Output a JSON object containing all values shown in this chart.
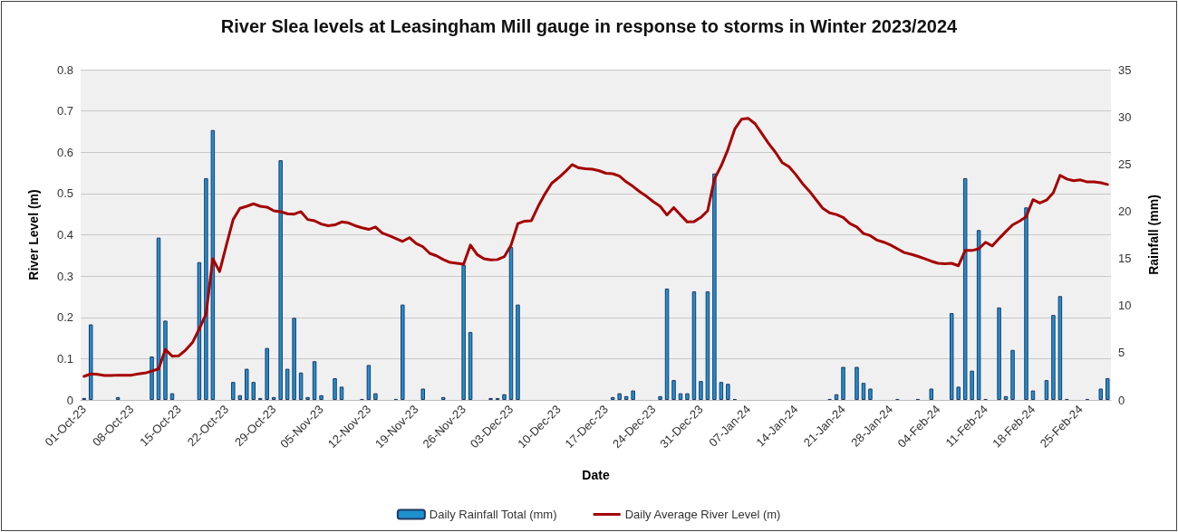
{
  "chart_data": {
    "type": "bar",
    "title": "River Slea levels at Leasingham Mill gauge in response to storms in Winter 2023/2024",
    "xlabel": "Date",
    "ylabel": "River Level (m)",
    "y2label": "Rainfall (mm)",
    "categories": [
      "01-Oct-23",
      null,
      null,
      null,
      null,
      null,
      null,
      "08-Oct-23",
      null,
      null,
      null,
      null,
      null,
      null,
      "15-Oct-23",
      null,
      null,
      null,
      null,
      null,
      null,
      "22-Oct-23",
      null,
      null,
      null,
      null,
      null,
      null,
      "29-Oct-23",
      null,
      null,
      null,
      null,
      null,
      null,
      "05-Nov-23",
      null,
      null,
      null,
      null,
      null,
      null,
      "12-Nov-23",
      null,
      null,
      null,
      null,
      null,
      null,
      "19-Nov-23",
      null,
      null,
      null,
      null,
      null,
      null,
      "26-Nov-23",
      null,
      null,
      null,
      null,
      null,
      null,
      "03-Dec-23",
      null,
      null,
      null,
      null,
      null,
      null,
      "10-Dec-23",
      null,
      null,
      null,
      null,
      null,
      null,
      "17-Dec-23",
      null,
      null,
      null,
      null,
      null,
      null,
      "24-Dec-23",
      null,
      null,
      null,
      null,
      null,
      null,
      "31-Dec-23",
      null,
      null,
      null,
      null,
      null,
      null,
      "07-Jan-24",
      null,
      null,
      null,
      null,
      null,
      null,
      "14-Jan-24",
      null,
      null,
      null,
      null,
      null,
      null,
      "21-Jan-24",
      null,
      null,
      null,
      null,
      null,
      null,
      "28-Jan-24",
      null,
      null,
      null,
      null,
      null,
      null,
      "04-Feb-24",
      null,
      null,
      null,
      null,
      null,
      null,
      "11-Feb-24",
      null,
      null,
      null,
      null,
      null,
      null,
      "18-Feb-24",
      null,
      null,
      null,
      null,
      null,
      null,
      "25-Feb-24",
      null,
      null,
      null,
      null
    ],
    "series": [
      {
        "name": "Daily Rainfall Total (mm)",
        "axis": "y2",
        "color": "#1e90d0",
        "values": [
          0.2,
          8.0,
          0,
          0,
          0,
          0.3,
          0,
          0,
          0,
          0,
          4.6,
          17.2,
          8.4,
          0.7,
          0,
          0,
          0,
          14.6,
          23.5,
          28.6,
          0,
          0,
          1.9,
          0.5,
          3.3,
          1.9,
          0.2,
          5.5,
          0.3,
          25.4,
          3.3,
          8.7,
          2.9,
          0.3,
          4.1,
          0.5,
          0,
          2.3,
          1.4,
          0,
          0,
          0.1,
          3.7,
          0.7,
          0,
          0,
          0.1,
          10.1,
          0,
          0,
          1.2,
          0,
          0,
          0.3,
          0,
          0,
          14.3,
          7.2,
          0,
          0,
          0.2,
          0.2,
          0.6,
          16.2,
          10.1,
          0,
          0,
          0,
          0,
          0,
          0,
          0,
          0,
          0,
          0,
          0,
          0,
          0,
          0.3,
          0.7,
          0.4,
          1.0,
          0,
          0,
          0,
          0.4,
          11.8,
          2.1,
          0.7,
          0.7,
          11.5,
          2.0,
          11.5,
          24.0,
          1.9,
          1.7,
          0.1,
          0,
          0,
          0,
          0,
          0,
          0,
          0,
          0,
          0,
          0,
          0,
          0,
          0,
          0.1,
          0.6,
          3.5,
          0,
          3.5,
          1.8,
          1.2,
          0,
          0,
          0,
          0.1,
          0,
          0,
          0.1,
          0,
          1.2,
          0,
          0,
          9.2,
          1.4,
          23.5,
          3.1,
          18.0,
          0.1,
          0,
          9.8,
          0.4,
          5.3,
          0,
          20.4,
          1.0,
          0,
          2.1,
          9.0,
          11.0,
          0.1,
          0,
          0,
          0.1,
          0,
          1.2,
          2.3
        ]
      },
      {
        "name": "Daily Average River Level (m)",
        "type": "line",
        "color": "#a50000",
        "values": [
          0.057,
          0.063,
          0.062,
          0.059,
          0.059,
          0.06,
          0.06,
          0.06,
          0.063,
          0.065,
          0.07,
          0.075,
          0.122,
          0.106,
          0.107,
          0.121,
          0.139,
          0.172,
          0.208,
          0.342,
          0.311,
          0.375,
          0.437,
          0.464,
          0.469,
          0.475,
          0.469,
          0.467,
          0.458,
          0.456,
          0.451,
          0.45,
          0.456,
          0.437,
          0.434,
          0.426,
          0.422,
          0.424,
          0.431,
          0.429,
          0.422,
          0.417,
          0.413,
          0.419,
          0.404,
          0.398,
          0.391,
          0.384,
          0.393,
          0.379,
          0.371,
          0.355,
          0.349,
          0.34,
          0.333,
          0.331,
          0.329,
          0.375,
          0.352,
          0.342,
          0.339,
          0.34,
          0.347,
          0.375,
          0.427,
          0.433,
          0.434,
          0.469,
          0.499,
          0.525,
          0.538,
          0.553,
          0.57,
          0.562,
          0.56,
          0.559,
          0.555,
          0.549,
          0.548,
          0.542,
          0.528,
          0.517,
          0.504,
          0.493,
          0.48,
          0.469,
          0.448,
          0.466,
          0.448,
          0.431,
          0.432,
          0.442,
          0.458,
          0.535,
          0.567,
          0.607,
          0.656,
          0.68,
          0.682,
          0.669,
          0.645,
          0.621,
          0.6,
          0.575,
          0.565,
          0.546,
          0.524,
          0.506,
          0.485,
          0.464,
          0.453,
          0.449,
          0.442,
          0.427,
          0.419,
          0.403,
          0.398,
          0.387,
          0.382,
          0.375,
          0.366,
          0.357,
          0.353,
          0.348,
          0.342,
          0.336,
          0.331,
          0.33,
          0.331,
          0.325,
          0.362,
          0.362,
          0.366,
          0.382,
          0.373,
          0.391,
          0.408,
          0.424,
          0.433,
          0.444,
          0.485,
          0.477,
          0.484,
          0.502,
          0.544,
          0.535,
          0.531,
          0.533,
          0.528,
          0.528,
          0.526,
          0.522
        ]
      }
    ],
    "ylim": [
      0,
      0.8
    ],
    "yticks": [
      0,
      0.1,
      0.2,
      0.3,
      0.4,
      0.5,
      0.6,
      0.7,
      0.8
    ],
    "y2lim": [
      0,
      35
    ],
    "y2ticks": [
      0,
      5,
      10,
      15,
      20,
      25,
      30,
      35
    ],
    "grid": "y",
    "legend": "bottom",
    "marker": "none",
    "line_style": "solid"
  }
}
